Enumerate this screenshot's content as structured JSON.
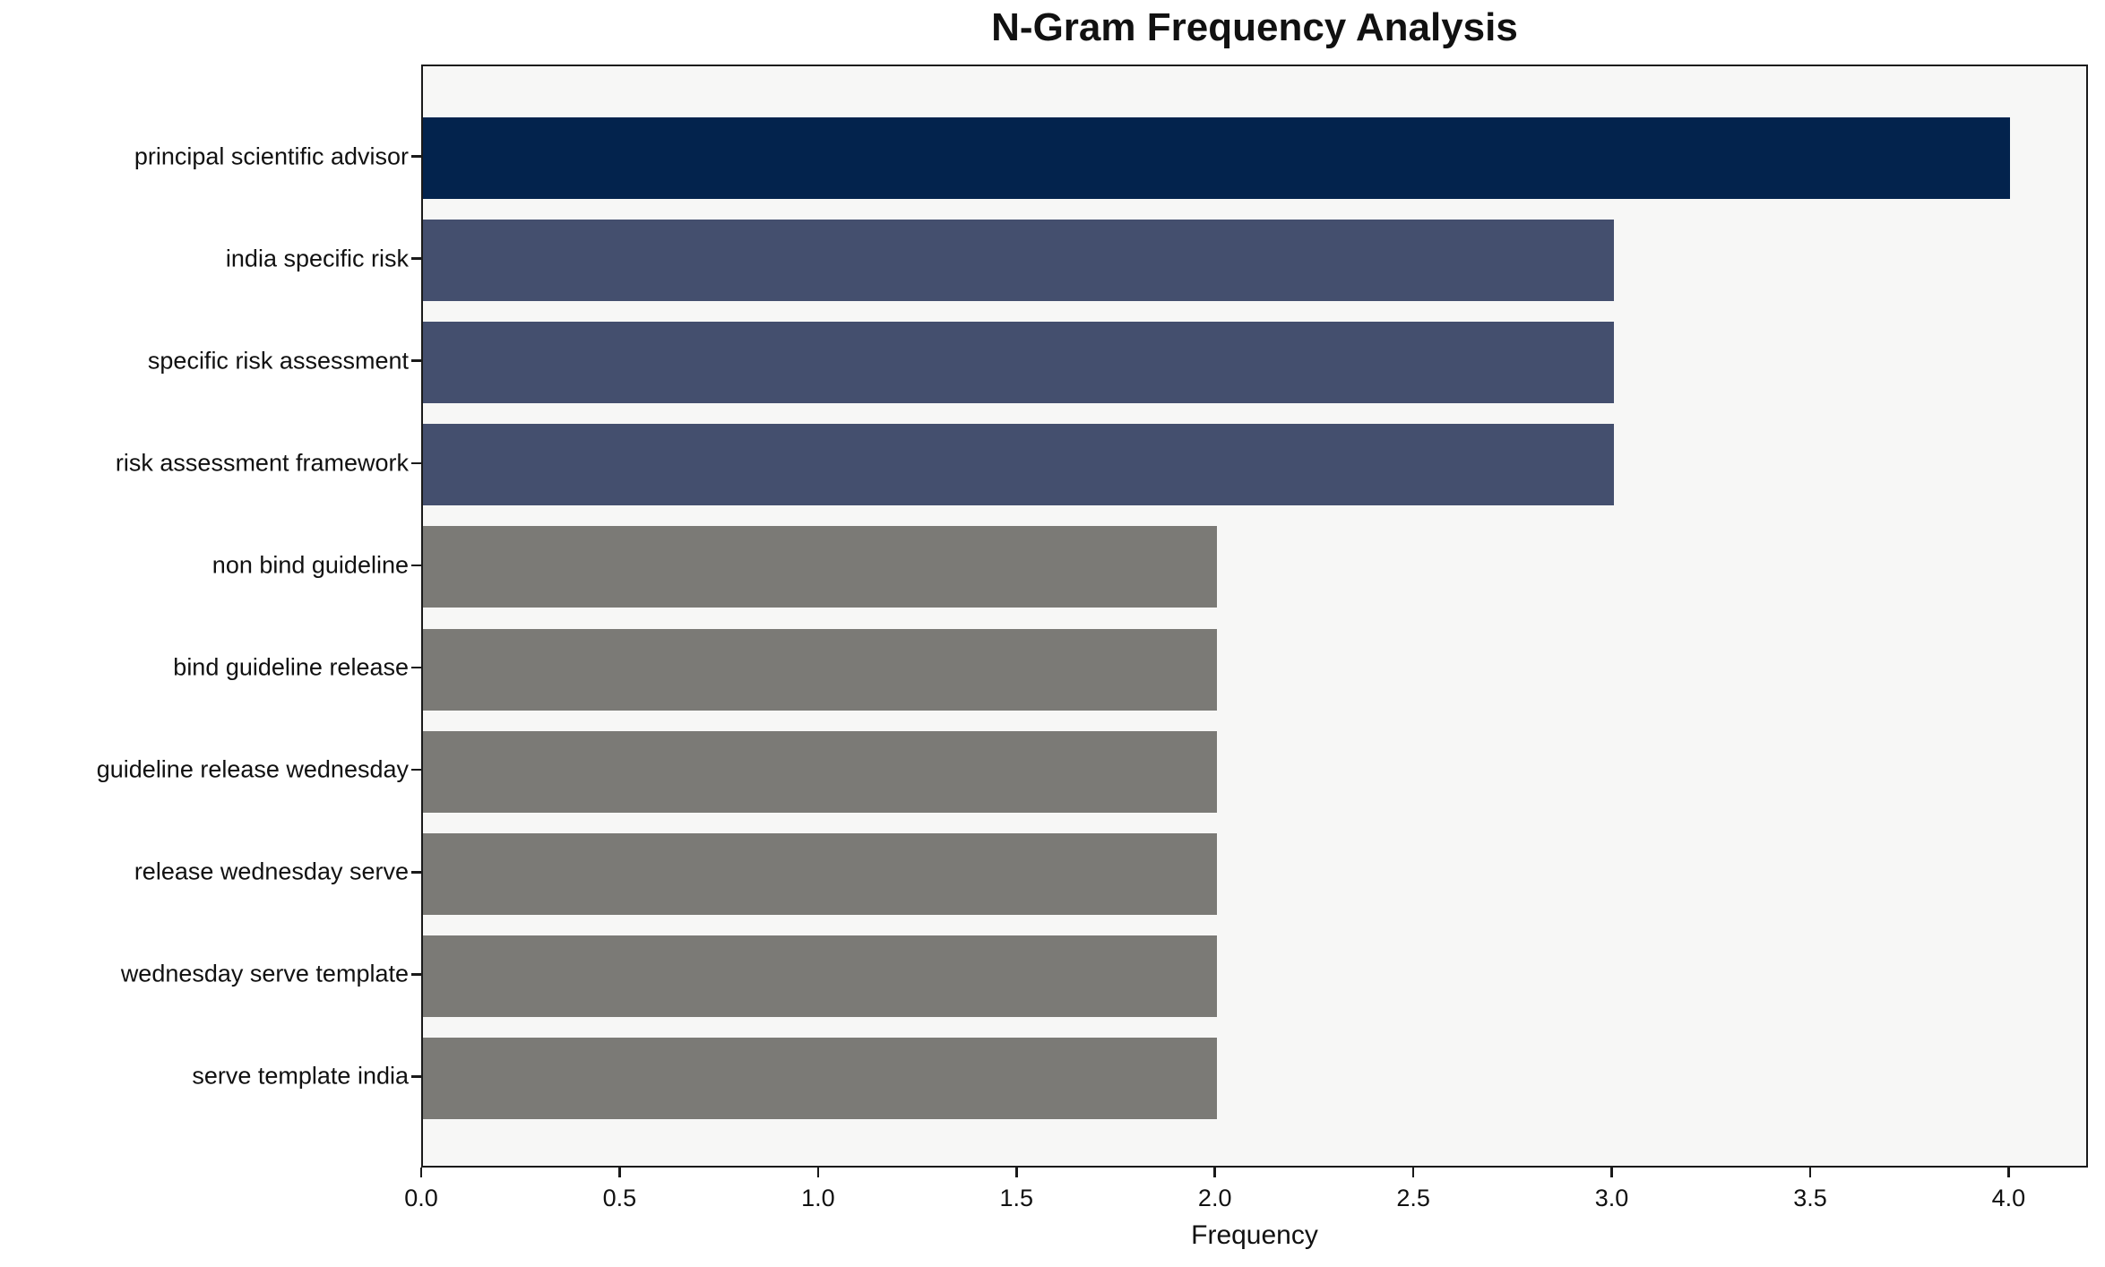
{
  "title": "N-Gram Frequency Analysis",
  "chart_data": {
    "type": "bar",
    "orientation": "horizontal",
    "title": "N-Gram Frequency Analysis",
    "xlabel": "Frequency",
    "ylabel": "",
    "categories": [
      "principal scientific advisor",
      "india specific risk",
      "specific risk assessment",
      "risk assessment framework",
      "non bind guideline",
      "bind guideline release",
      "guideline release wednesday",
      "release wednesday serve",
      "wednesday serve template",
      "serve template india"
    ],
    "values": [
      4,
      3,
      3,
      3,
      2,
      2,
      2,
      2,
      2,
      2
    ],
    "bar_colors": [
      "#03234d",
      "#444f6e",
      "#444f6e",
      "#444f6e",
      "#7b7a76",
      "#7b7a76",
      "#7b7a76",
      "#7b7a76",
      "#7b7a76",
      "#7b7a76"
    ],
    "xlim": [
      0,
      4.2
    ],
    "x_ticks": [
      0.0,
      0.5,
      1.0,
      1.5,
      2.0,
      2.5,
      3.0,
      3.5,
      4.0
    ],
    "x_tick_labels": [
      "0.0",
      "0.5",
      "1.0",
      "1.5",
      "2.0",
      "2.5",
      "3.0",
      "3.5",
      "4.0"
    ],
    "grid": false,
    "legend": null,
    "plot_background": "#f7f7f6",
    "figure_background": "#ffffff",
    "spine_color": "#1a1a1a"
  }
}
